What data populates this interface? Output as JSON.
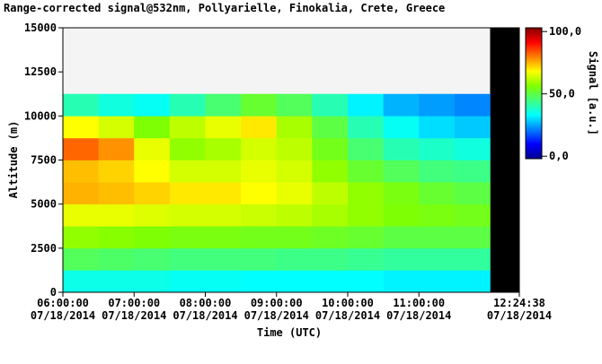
{
  "chart_data": {
    "type": "heatmap",
    "title": "Range-corrected signal@532nm, Pollyarielle, Finokalia, Crete, Greece",
    "xlabel": "Time (UTC)",
    "ylabel": "Altitude (m)",
    "colorbar_label": "Signal [a.u.]",
    "xlim": [
      6,
      12.4106
    ],
    "ylim": [
      0,
      15000
    ],
    "xticks": [
      {
        "value": 6,
        "label": "06:00:00\n07/18/2014"
      },
      {
        "value": 7,
        "label": "07:00:00\n07/18/2014"
      },
      {
        "value": 8,
        "label": "08:00:00\n07/18/2014"
      },
      {
        "value": 9,
        "label": "09:00:00\n07/18/2014"
      },
      {
        "value": 10,
        "label": "10:00:00\n07/18/2014"
      },
      {
        "value": 11,
        "label": "11:00:00\n07/18/2014"
      },
      {
        "value": 12.4106,
        "label": "12:24:38\n07/18/2014"
      }
    ],
    "yticks": [
      0,
      2500,
      5000,
      7500,
      10000,
      12500,
      15000
    ],
    "clim": [
      -2,
      103
    ],
    "cticks": [
      {
        "value": 0,
        "label": "0,0"
      },
      {
        "value": 50,
        "label": "50,0"
      },
      {
        "value": 100,
        "label": "100,0"
      }
    ],
    "colormap": [
      "#00008f",
      "#0000ff",
      "#0080ff",
      "#00ffff",
      "#40ff80",
      "#80ff00",
      "#ffff00",
      "#ff8000",
      "#ff0000",
      "#800000"
    ],
    "background_color": "#f4f4f4",
    "nodata_color": "#000000",
    "x_bins": [
      6,
      6.5,
      7,
      7.5,
      8,
      8.5,
      9,
      9.5,
      10,
      10.5,
      11,
      11.5,
      12
    ],
    "y_bins": [
      0,
      1250,
      2500,
      3750,
      5000,
      6250,
      7500,
      8750,
      10000,
      11250,
      12500,
      13750,
      15000
    ],
    "z": [
      [
        35,
        35,
        35,
        34,
        34,
        33,
        33,
        33,
        33,
        32,
        32,
        32
      ],
      [
        48,
        47,
        46,
        45,
        45,
        45,
        44,
        44,
        43,
        42,
        42,
        42
      ],
      [
        58,
        57,
        56,
        55,
        55,
        54,
        54,
        53,
        52,
        50,
        50,
        50
      ],
      [
        66,
        66,
        65,
        64,
        64,
        63,
        62,
        60,
        58,
        56,
        55,
        54
      ],
      [
        75,
        74,
        72,
        70,
        70,
        68,
        66,
        62,
        58,
        55,
        52,
        50
      ],
      [
        74,
        72,
        68,
        64,
        64,
        66,
        64,
        58,
        52,
        48,
        45,
        44
      ],
      [
        82,
        78,
        66,
        58,
        60,
        64,
        62,
        54,
        46,
        40,
        38,
        36
      ],
      [
        68,
        64,
        56,
        62,
        66,
        70,
        60,
        50,
        40,
        34,
        30,
        28
      ],
      [
        40,
        36,
        34,
        40,
        46,
        52,
        48,
        40,
        32,
        26,
        24,
        22
      ],
      [
        null,
        null,
        null,
        null,
        null,
        null,
        null,
        null,
        null,
        null,
        null,
        null
      ],
      [
        null,
        null,
        null,
        null,
        null,
        null,
        null,
        null,
        null,
        null,
        null,
        null
      ],
      [
        null,
        null,
        null,
        null,
        null,
        null,
        null,
        null,
        null,
        null,
        null,
        null
      ]
    ]
  }
}
